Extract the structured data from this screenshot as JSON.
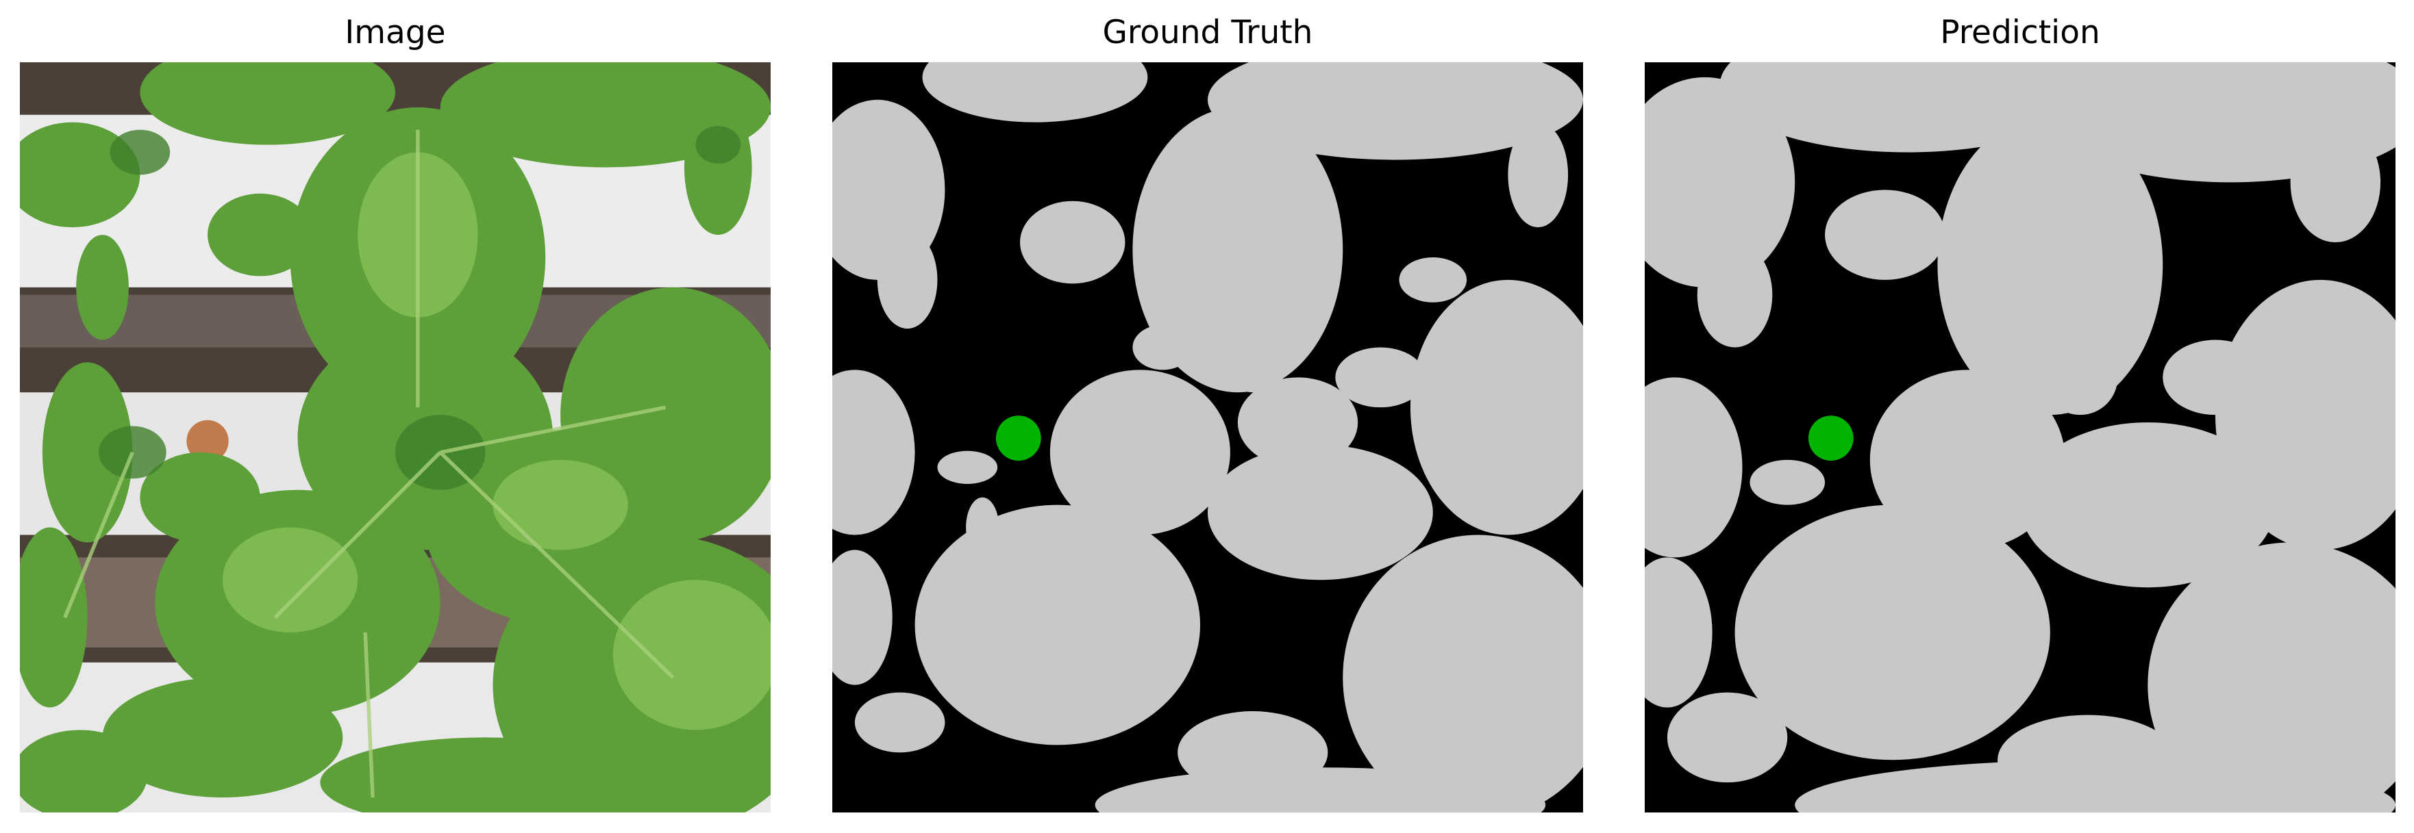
{
  "panels": [
    {
      "title": "Image",
      "icon": "plant-photo-icon"
    },
    {
      "title": "Ground Truth",
      "icon": "segmentation-mask-icon"
    },
    {
      "title": "Prediction",
      "icon": "segmentation-mask-icon"
    }
  ],
  "colors": {
    "background": "#ffffff",
    "mask_foreground": "#c8c8c8",
    "mask_background": "#000000",
    "marker": "#00b400",
    "leaf_dark": "#3f7f2a",
    "leaf_mid": "#5d9f39",
    "leaf_light": "#8cc65a",
    "rail": "#ececec",
    "gap": "#4b4038"
  }
}
